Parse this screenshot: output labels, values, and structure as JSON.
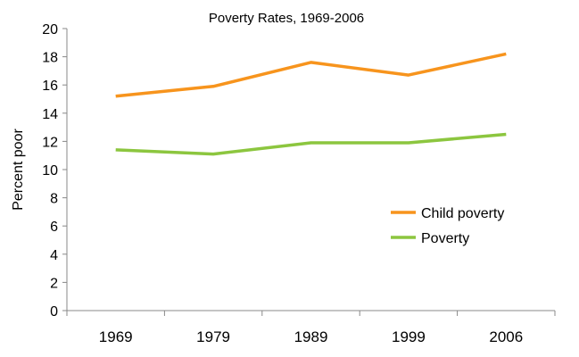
{
  "chart_data": {
    "type": "line",
    "title": "Poverty Rates, 1969-2006",
    "xlabel": "",
    "ylabel": "Percent poor",
    "categories": [
      "1969",
      "1979",
      "1989",
      "1999",
      "2006"
    ],
    "series": [
      {
        "name": "Child poverty",
        "color": "#f7941d",
        "values": [
          15.2,
          15.9,
          17.6,
          16.7,
          18.2
        ]
      },
      {
        "name": "Poverty",
        "color": "#8cc63f",
        "values": [
          11.4,
          11.1,
          11.9,
          11.9,
          12.5
        ]
      }
    ],
    "ylim": [
      0,
      20
    ],
    "yticks": [
      "0",
      "2",
      "4",
      "6",
      "8",
      "10",
      "12",
      "14",
      "16",
      "18",
      "20"
    ],
    "grid": false,
    "legend": "right"
  }
}
